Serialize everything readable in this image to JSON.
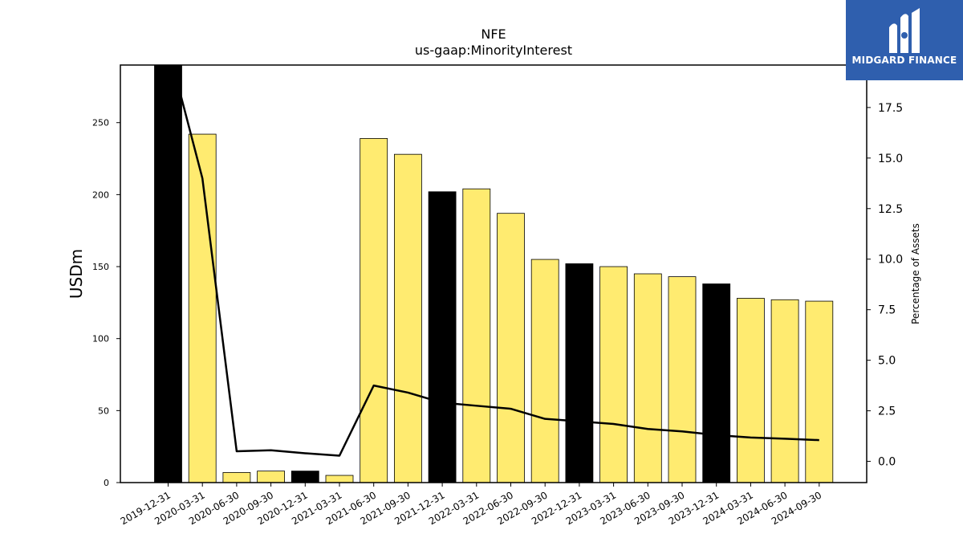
{
  "chart_data": {
    "type": "bar",
    "title": "NFE",
    "subtitle": "us-gaap:MinorityInterest",
    "ylabel": "USDm",
    "y2label": "Percentage of Assets",
    "ylim": [
      0,
      290
    ],
    "y2lim": [
      -1.05,
      19.6
    ],
    "yticks": [
      0,
      50,
      100,
      150,
      200,
      250
    ],
    "y2ticks": [
      "0.0",
      "2.5",
      "5.0",
      "7.5",
      "10.0",
      "12.5",
      "15.0",
      "17.5"
    ],
    "categories": [
      "2019-12-31",
      "2020-03-31",
      "2020-06-30",
      "2020-09-30",
      "2020-12-31",
      "2021-03-31",
      "2021-06-30",
      "2021-09-30",
      "2021-12-31",
      "2022-03-31",
      "2022-06-30",
      "2022-09-30",
      "2022-12-31",
      "2023-03-31",
      "2023-06-30",
      "2023-09-30",
      "2023-12-31",
      "2024-03-31",
      "2024-06-30",
      "2024-09-30"
    ],
    "series": [
      {
        "values": [
          290,
          242,
          7,
          8,
          8,
          5,
          239,
          228,
          202,
          204,
          187,
          155,
          152,
          150,
          145,
          143,
          138,
          128,
          127,
          126
        ],
        "colors": [
          "#000000",
          "#ffeb70",
          "#ffeb70",
          "#ffeb70",
          "#000000",
          "#ffeb70",
          "#ffeb70",
          "#ffeb70",
          "#000000",
          "#ffeb70",
          "#ffeb70",
          "#ffeb70",
          "#000000",
          "#ffeb70",
          "#ffeb70",
          "#ffeb70",
          "#000000",
          "#ffeb70",
          "#ffeb70",
          "#ffeb70"
        ]
      },
      {
        "axis": "right",
        "type": "line",
        "color": "#000000",
        "values": [
          20.5,
          14.0,
          0.5,
          0.55,
          0.4,
          0.28,
          3.75,
          3.4,
          2.9,
          2.75,
          2.6,
          2.1,
          1.98,
          1.85,
          1.6,
          1.48,
          1.3,
          1.18,
          1.12,
          1.05
        ]
      }
    ],
    "grid": false
  },
  "logo": {
    "text": "MIDGARD FINANCE"
  }
}
